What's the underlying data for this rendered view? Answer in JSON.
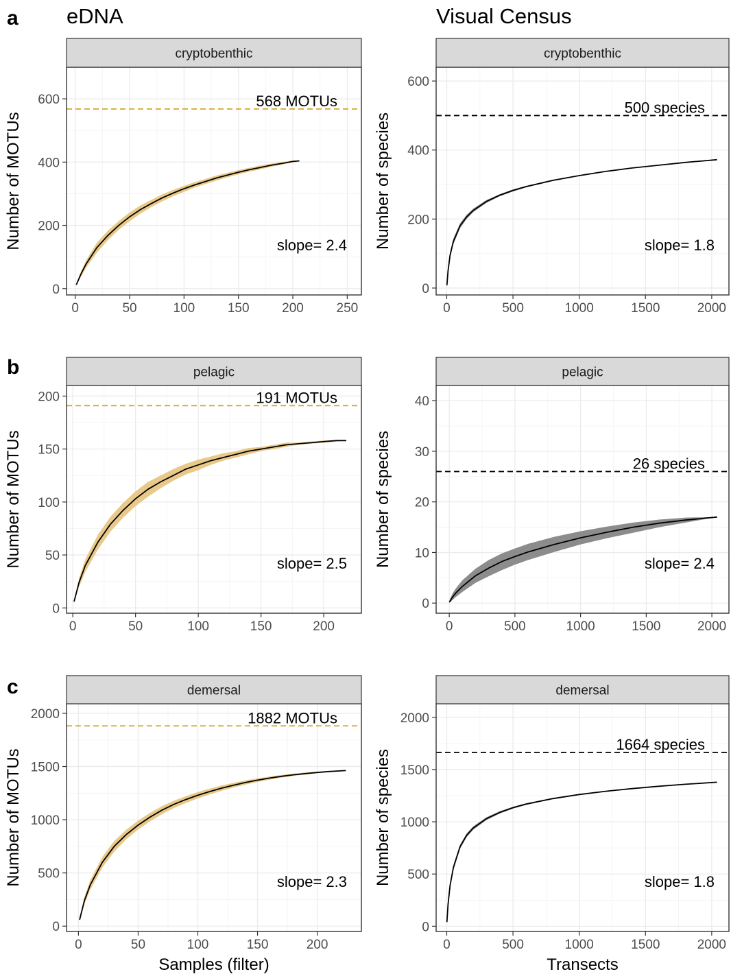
{
  "column_titles": [
    "eDNA",
    "Visual Census"
  ],
  "panel_letters": [
    "a",
    "b",
    "c"
  ],
  "colors": {
    "edna_ribbon": "#E8C98A",
    "edna_line": "#D4A32A",
    "vc_ribbon": "#8C8C8C",
    "vc_line": "#000000",
    "curve": "#000000"
  },
  "chart_data": [
    {
      "id": "a-edna",
      "row": 0,
      "col": 0,
      "type": "line",
      "facet": "cryptobenthic",
      "xlabel": "",
      "ylabel": "Number of MOTUs",
      "xlim": [
        -8,
        263
      ],
      "ylim": [
        -20,
        700
      ],
      "xticks": [
        0,
        50,
        100,
        150,
        200,
        250
      ],
      "yticks": [
        0,
        200,
        400,
        600
      ],
      "xticklabels": [
        "0",
        "50",
        "100",
        "150",
        "200",
        "250"
      ],
      "yticklabels": [
        "0",
        "200",
        "400",
        "600"
      ],
      "ribbon_color": "#E8C98A",
      "hline": {
        "y": 568,
        "label": "568 MOTUs",
        "color": "#D4A32A"
      },
      "slope_label": "slope= 2.4",
      "x": [
        1,
        5,
        10,
        20,
        30,
        40,
        50,
        60,
        70,
        80,
        90,
        100,
        110,
        120,
        130,
        140,
        150,
        160,
        170,
        180,
        190,
        200,
        206
      ],
      "y": [
        12,
        44,
        78,
        130,
        168,
        200,
        227,
        250,
        269,
        287,
        302,
        316,
        328,
        339,
        350,
        359,
        368,
        376,
        383,
        390,
        396,
        402,
        404
      ],
      "y_low": [
        10,
        36,
        66,
        114,
        153,
        186,
        213,
        237,
        258,
        276,
        292,
        306,
        320,
        331,
        342,
        352,
        361,
        370,
        377,
        385,
        392,
        399,
        403
      ],
      "y_high": [
        14,
        52,
        90,
        146,
        183,
        214,
        241,
        263,
        281,
        298,
        312,
        325,
        337,
        347,
        358,
        366,
        375,
        382,
        389,
        395,
        400,
        405,
        405
      ]
    },
    {
      "id": "a-vc",
      "row": 0,
      "col": 1,
      "type": "line",
      "facet": "cryptobenthic",
      "xlabel": "",
      "ylabel": "Number of species",
      "xlim": [
        -80,
        2130
      ],
      "ylim": [
        -20,
        640
      ],
      "xticks": [
        0,
        500,
        1000,
        1500,
        2000
      ],
      "yticks": [
        0,
        200,
        400,
        600
      ],
      "xticklabels": [
        "0",
        "500",
        "1000",
        "1500",
        "2000"
      ],
      "yticklabels": [
        "0",
        "200",
        "400",
        "600"
      ],
      "ribbon_color": "#8C8C8C",
      "hline": {
        "y": 500,
        "label": "500 species",
        "color": "#000000"
      },
      "slope_label": "slope= 1.8",
      "x": [
        1,
        10,
        25,
        50,
        100,
        150,
        200,
        300,
        400,
        500,
        600,
        800,
        1000,
        1200,
        1400,
        1600,
        1800,
        2040
      ],
      "y": [
        8,
        50,
        95,
        135,
        180,
        206,
        225,
        251,
        269,
        283,
        294,
        312,
        326,
        338,
        348,
        356,
        364,
        372
      ],
      "y_low": [
        6,
        44,
        87,
        127,
        173,
        200,
        220,
        247,
        266,
        280,
        292,
        310,
        325,
        337,
        347,
        356,
        364,
        372
      ],
      "y_high": [
        10,
        56,
        103,
        143,
        187,
        212,
        230,
        255,
        272,
        286,
        296,
        314,
        327,
        339,
        349,
        357,
        364,
        372
      ]
    },
    {
      "id": "b-edna",
      "row": 1,
      "col": 0,
      "type": "line",
      "facet": "pelagic",
      "xlabel": "",
      "ylabel": "Number of MOTUs",
      "xlim": [
        -5,
        230
      ],
      "ylim": [
        -5,
        210
      ],
      "xticks": [
        0,
        50,
        100,
        150,
        200
      ],
      "yticks": [
        0,
        50,
        100,
        150,
        200
      ],
      "xticklabels": [
        "0",
        "50",
        "100",
        "150",
        "200"
      ],
      "yticklabels": [
        "0",
        "50",
        "100",
        "150",
        "200"
      ],
      "ribbon_color": "#E8C98A",
      "hline": {
        "y": 191,
        "label": "191 MOTUs",
        "color": "#D4A32A"
      },
      "slope_label": "slope= 2.5",
      "x": [
        1,
        5,
        10,
        20,
        30,
        40,
        50,
        60,
        70,
        80,
        90,
        100,
        110,
        120,
        130,
        140,
        150,
        160,
        170,
        180,
        190,
        200,
        210,
        218
      ],
      "y": [
        6,
        24,
        40,
        62,
        79,
        92,
        103,
        112,
        119,
        125,
        131,
        135,
        139,
        142,
        145,
        148,
        150,
        152,
        154,
        155,
        156,
        157,
        158,
        158
      ],
      "y_low": [
        5,
        20,
        34,
        55,
        72,
        85,
        96,
        105,
        113,
        120,
        126,
        130,
        135,
        139,
        142,
        145,
        148,
        150,
        152,
        154,
        155,
        156,
        157,
        158
      ],
      "y_high": [
        7,
        28,
        46,
        69,
        86,
        99,
        110,
        119,
        125,
        131,
        136,
        140,
        143,
        146,
        148,
        151,
        152,
        154,
        156,
        156,
        157,
        158,
        158,
        158
      ]
    },
    {
      "id": "b-vc",
      "row": 1,
      "col": 1,
      "type": "line",
      "facet": "pelagic",
      "xlabel": "",
      "ylabel": "Number of species",
      "xlim": [
        -100,
        2130
      ],
      "ylim": [
        -2,
        43
      ],
      "xticks": [
        0,
        500,
        1000,
        1500,
        2000
      ],
      "yticks": [
        0,
        10,
        20,
        30,
        40
      ],
      "xticklabels": [
        "0",
        "500",
        "1000",
        "1500",
        "2000"
      ],
      "yticklabels": [
        "0",
        "10",
        "20",
        "30",
        "40"
      ],
      "ribbon_color": "#8C8C8C",
      "hline": {
        "y": 26,
        "label": "26 species",
        "color": "#000000"
      },
      "slope_label": "slope= 2.4",
      "x": [
        1,
        25,
        50,
        100,
        200,
        300,
        400,
        500,
        600,
        800,
        1000,
        1200,
        1400,
        1600,
        1800,
        2040
      ],
      "y": [
        0.2,
        1.2,
        2,
        3.3,
        5.4,
        6.9,
        8.2,
        9.2,
        10.1,
        11.6,
        12.9,
        14,
        15,
        15.8,
        16.4,
        17
      ],
      "y_low": [
        0,
        0.6,
        1.2,
        2.2,
        4,
        5.3,
        6.5,
        7.6,
        8.5,
        10.1,
        11.6,
        12.8,
        13.9,
        15,
        15.9,
        17
      ],
      "y_high": [
        0.5,
        1.9,
        2.9,
        4.5,
        6.8,
        8.5,
        9.8,
        10.8,
        11.7,
        13.1,
        14.2,
        15.1,
        15.9,
        16.5,
        16.9,
        17
      ]
    },
    {
      "id": "c-edna",
      "row": 2,
      "col": 0,
      "type": "line",
      "facet": "demersal",
      "xlabel": "Samples (filter)",
      "ylabel": "Number of MOTUs",
      "xlim": [
        -10,
        237
      ],
      "ylim": [
        -50,
        2090
      ],
      "xticks": [
        0,
        50,
        100,
        150,
        200
      ],
      "yticks": [
        0,
        500,
        1000,
        1500,
        2000
      ],
      "xticklabels": [
        "0",
        "50",
        "100",
        "150",
        "200"
      ],
      "yticklabels": [
        "0",
        "500",
        "1000",
        "1500",
        "2000"
      ],
      "ribbon_color": "#E8C98A",
      "hline": {
        "y": 1882,
        "label": "1882 MOTUs",
        "color": "#D4A32A"
      },
      "slope_label": "slope= 2.3",
      "x": [
        1,
        5,
        10,
        20,
        30,
        40,
        50,
        60,
        70,
        80,
        90,
        100,
        110,
        120,
        130,
        140,
        150,
        160,
        170,
        180,
        190,
        200,
        210,
        224
      ],
      "y": [
        60,
        240,
        390,
        600,
        750,
        860,
        950,
        1025,
        1090,
        1145,
        1190,
        1230,
        1265,
        1297,
        1325,
        1350,
        1372,
        1391,
        1408,
        1422,
        1434,
        1444,
        1453,
        1462
      ],
      "y_low": [
        50,
        205,
        345,
        550,
        700,
        815,
        908,
        985,
        1052,
        1110,
        1158,
        1200,
        1238,
        1272,
        1303,
        1330,
        1355,
        1376,
        1395,
        1411,
        1425,
        1437,
        1448,
        1461
      ],
      "y_high": [
        70,
        275,
        435,
        650,
        800,
        905,
        992,
        1065,
        1128,
        1180,
        1222,
        1260,
        1292,
        1322,
        1347,
        1370,
        1389,
        1406,
        1421,
        1433,
        1443,
        1451,
        1458,
        1463
      ]
    },
    {
      "id": "c-vc",
      "row": 2,
      "col": 1,
      "type": "line",
      "facet": "demersal",
      "xlabel": "Transects",
      "ylabel": "Number of species",
      "xlim": [
        -80,
        2130
      ],
      "ylim": [
        -50,
        2130
      ],
      "xticks": [
        0,
        500,
        1000,
        1500,
        2000
      ],
      "yticks": [
        0,
        500,
        1000,
        1500,
        2000
      ],
      "xticklabels": [
        "0",
        "500",
        "1000",
        "1500",
        "2000"
      ],
      "yticklabels": [
        "0",
        "500",
        "1000",
        "1500",
        "2000"
      ],
      "ribbon_color": "#8C8C8C",
      "hline": {
        "y": 1664,
        "label": "1664 species",
        "color": "#000000"
      },
      "slope_label": "slope= 1.8",
      "x": [
        1,
        10,
        25,
        50,
        100,
        150,
        200,
        300,
        400,
        500,
        600,
        800,
        1000,
        1200,
        1400,
        1600,
        1800,
        2040
      ],
      "y": [
        40,
        210,
        390,
        560,
        760,
        870,
        940,
        1030,
        1090,
        1135,
        1170,
        1222,
        1261,
        1292,
        1318,
        1340,
        1359,
        1379
      ],
      "y_low": [
        30,
        190,
        365,
        535,
        740,
        852,
        924,
        1017,
        1079,
        1126,
        1162,
        1216,
        1257,
        1289,
        1316,
        1338,
        1358,
        1379
      ],
      "y_high": [
        50,
        230,
        415,
        585,
        780,
        888,
        956,
        1043,
        1101,
        1144,
        1178,
        1228,
        1265,
        1295,
        1320,
        1342,
        1360,
        1379
      ]
    }
  ]
}
